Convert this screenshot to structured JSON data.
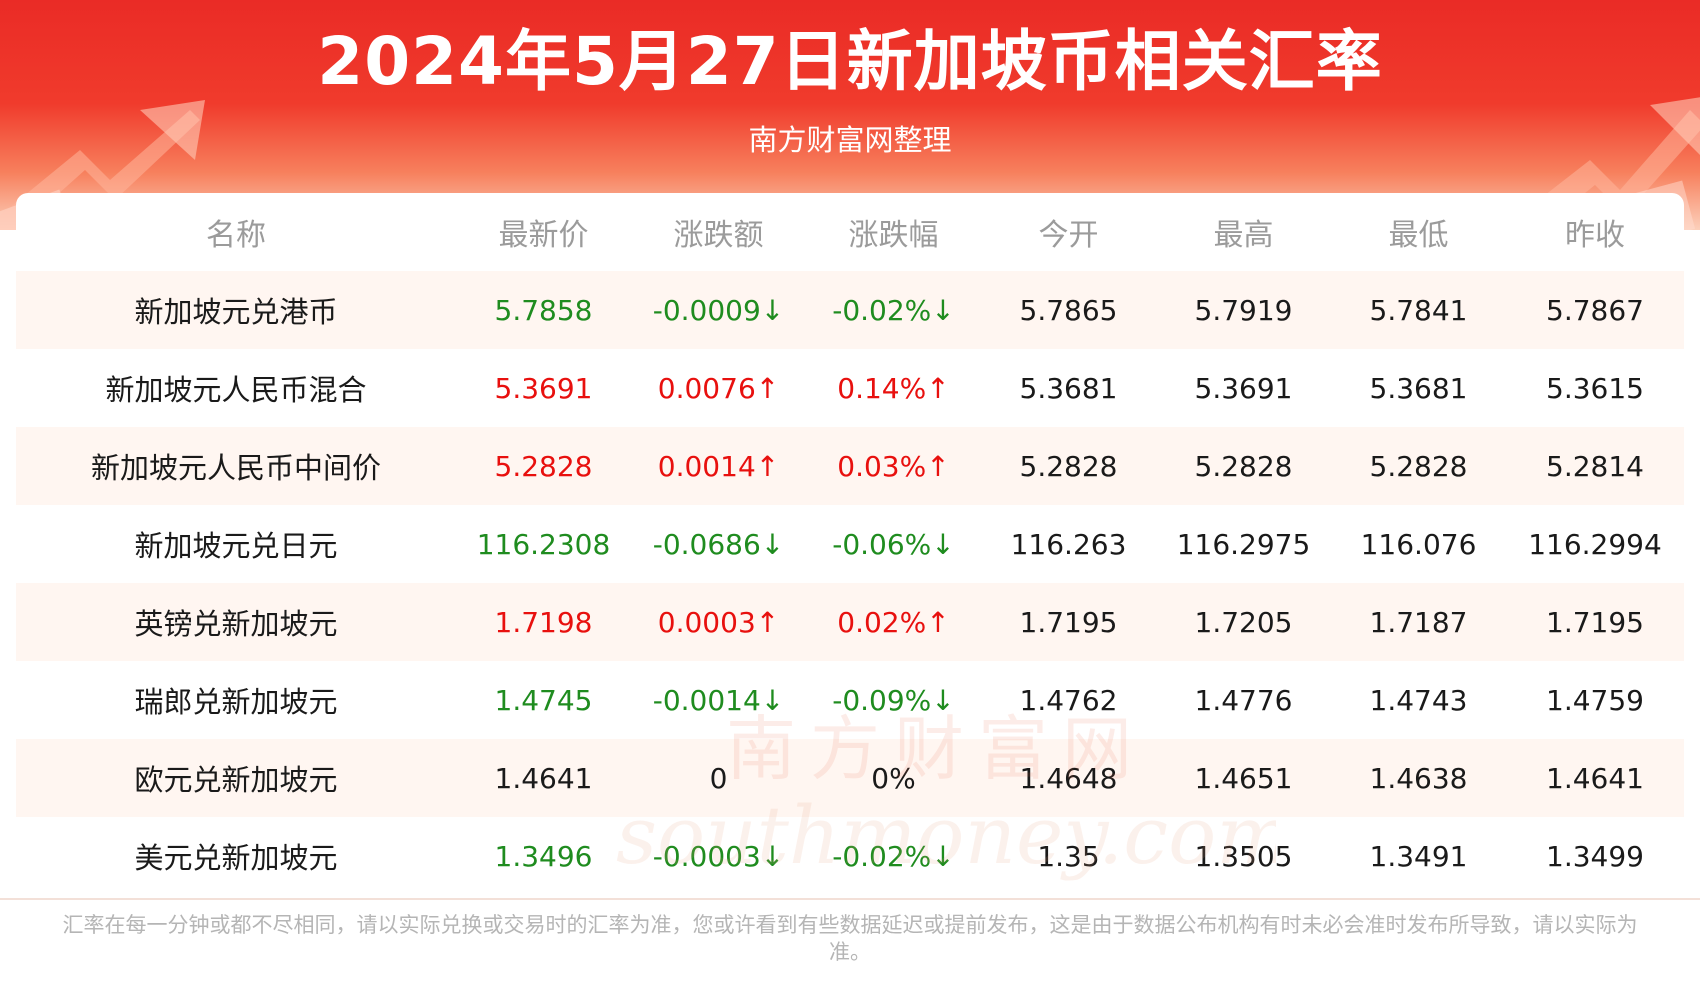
{
  "header": {
    "title": "2024年5月27日新加坡币相关汇率",
    "subtitle": "南方财富网整理"
  },
  "table": {
    "columns": [
      "名称",
      "最新价",
      "涨跌额",
      "涨跌幅",
      "今开",
      "最高",
      "最低",
      "昨收"
    ],
    "rows": [
      {
        "name": "新加坡元兑港币",
        "latest": "5.7858",
        "change": "-0.0009↓",
        "pct": "-0.02%↓",
        "open": "5.7865",
        "high": "5.7919",
        "low": "5.7841",
        "prev": "5.7867",
        "trend": "down"
      },
      {
        "name": "新加坡元人民币混合",
        "latest": "5.3691",
        "change": "0.0076↑",
        "pct": "0.14%↑",
        "open": "5.3681",
        "high": "5.3691",
        "low": "5.3681",
        "prev": "5.3615",
        "trend": "up"
      },
      {
        "name": "新加坡元人民币中间价",
        "latest": "5.2828",
        "change": "0.0014↑",
        "pct": "0.03%↑",
        "open": "5.2828",
        "high": "5.2828",
        "low": "5.2828",
        "prev": "5.2814",
        "trend": "up"
      },
      {
        "name": "新加坡元兑日元",
        "latest": "116.2308",
        "change": "-0.0686↓",
        "pct": "-0.06%↓",
        "open": "116.263",
        "high": "116.2975",
        "low": "116.076",
        "prev": "116.2994",
        "trend": "down"
      },
      {
        "name": "英镑兑新加坡元",
        "latest": "1.7198",
        "change": "0.0003↑",
        "pct": "0.02%↑",
        "open": "1.7195",
        "high": "1.7205",
        "low": "1.7187",
        "prev": "1.7195",
        "trend": "up"
      },
      {
        "name": "瑞郎兑新加坡元",
        "latest": "1.4745",
        "change": "-0.0014↓",
        "pct": "-0.09%↓",
        "open": "1.4762",
        "high": "1.4776",
        "low": "1.4743",
        "prev": "1.4759",
        "trend": "down"
      },
      {
        "name": "欧元兑新加坡元",
        "latest": "1.4641",
        "change": "0",
        "pct": "0%",
        "open": "1.4648",
        "high": "1.4651",
        "low": "1.4638",
        "prev": "1.4641",
        "trend": "flat"
      },
      {
        "name": "美元兑新加坡元",
        "latest": "1.3496",
        "change": "-0.0003↓",
        "pct": "-0.02%↓",
        "open": "1.35",
        "high": "1.3505",
        "low": "1.3491",
        "prev": "1.3499",
        "trend": "down"
      }
    ]
  },
  "watermark": {
    "cn": "南方财富网",
    "en": "southmoney.com"
  },
  "footer": {
    "disclaimer": "汇率在每一分钟或都不尽相同，请以实际兑换或交易时的汇率为准，您或许看到有些数据延迟或提前发布，这是由于数据公布机构有时未必会准时发布所导致，请以实际为准。"
  },
  "colors": {
    "up": "#e8100e",
    "down": "#1f8c1f",
    "header_red": "#ea2b26",
    "row_tint": "#fff6f1"
  }
}
